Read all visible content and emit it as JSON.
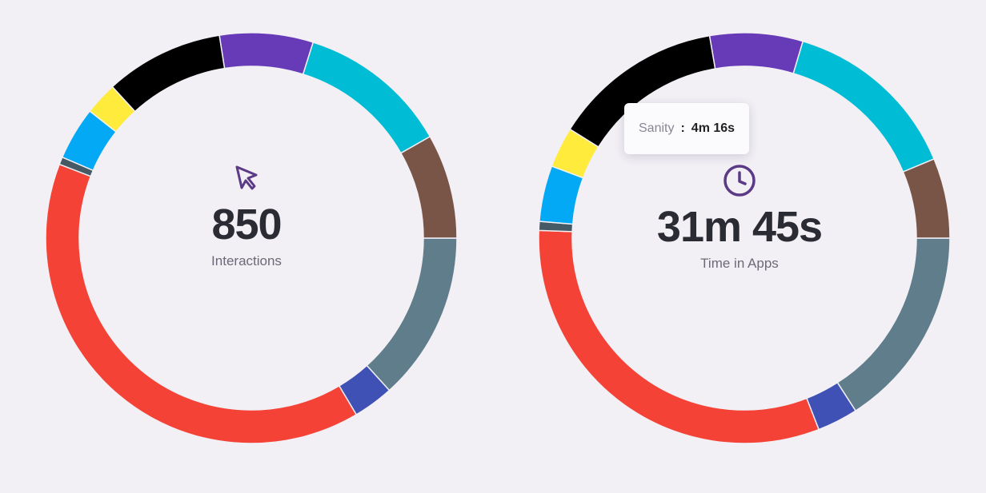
{
  "colors": {
    "background": "#f2eff5",
    "icon": "#5b3a86",
    "value_text": "#2b2b33",
    "label_text": "#6c6a76"
  },
  "chart_data": [
    {
      "type": "donut",
      "center_icon": "cursor-arrow-icon",
      "center_value": "850",
      "center_label": "Interactions",
      "segments": [
        {
          "color": "#607d8b",
          "value": 13.4
        },
        {
          "color": "#3f51b5",
          "value": 3.2
        },
        {
          "color": "#f44336",
          "value": 39.7
        },
        {
          "color": "#455a64",
          "value": 0.6
        },
        {
          "color": "#03a9f4",
          "value": 4.2
        },
        {
          "color": "#ffeb3b",
          "value": 2.6
        },
        {
          "color": "#000000",
          "value": 9.4
        },
        {
          "color": "#673ab7",
          "value": 7.4
        },
        {
          "color": "#00bcd4",
          "value": 12.0
        },
        {
          "color": "#795548",
          "value": 8.3
        }
      ]
    },
    {
      "type": "donut",
      "center_icon": "clock-icon",
      "center_value": "31m 45s",
      "center_label": "Time in Apps",
      "segments": [
        {
          "color": "#607d8b",
          "value": 15.9
        },
        {
          "color": "#3f51b5",
          "value": 3.2
        },
        {
          "color": "#f44336",
          "value": 31.5
        },
        {
          "color": "#455a64",
          "value": 0.7
        },
        {
          "color": "#03a9f4",
          "value": 4.4
        },
        {
          "color": "#ffeb3b",
          "value": 3.2
        },
        {
          "color": "#000000",
          "value": 13.4
        },
        {
          "color": "#673ab7",
          "value": 7.3
        },
        {
          "color": "#00bcd4",
          "value": 14.1
        },
        {
          "color": "#795548",
          "value": 6.3
        }
      ],
      "tooltip": {
        "name": "Sanity",
        "separator": ":",
        "value": "4m 16s"
      }
    }
  ]
}
